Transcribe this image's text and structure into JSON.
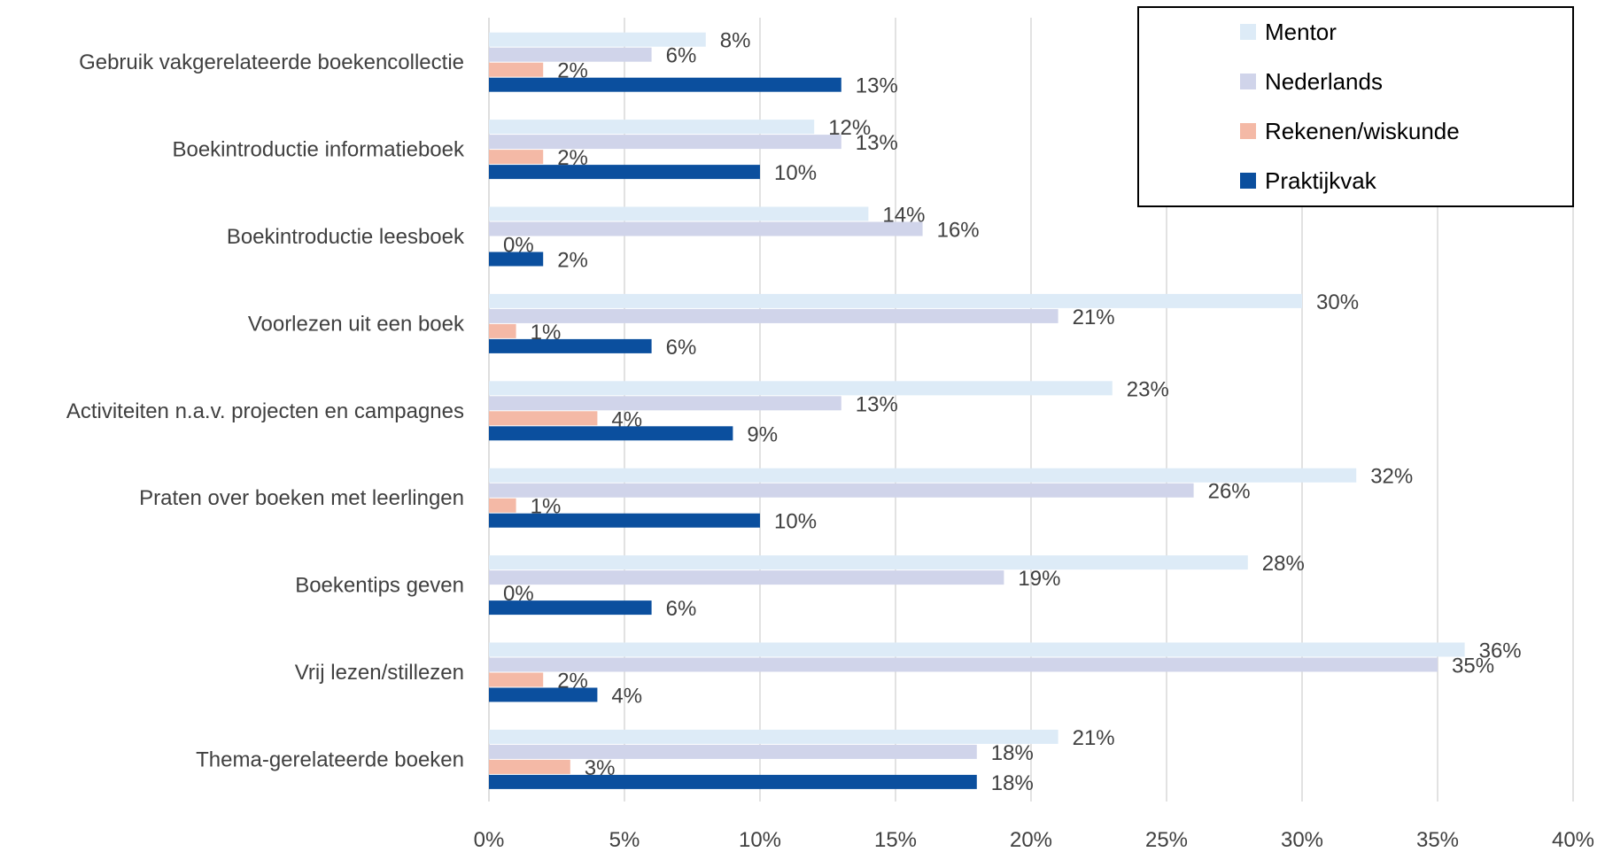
{
  "chart_data": {
    "type": "bar",
    "orientation": "horizontal",
    "categories": [
      "Gebruik vakgerelateerde boekencollectie",
      "Boekintroductie informatieboek",
      "Boekintroductie leesboek",
      "Voorlezen uit een boek",
      "Activiteiten n.a.v. projecten en campagnes",
      "Praten over boeken met leerlingen",
      "Boekentips geven",
      "Vrij lezen/stillezen",
      "Thema-gerelateerde boeken"
    ],
    "series": [
      {
        "name": "Mentor",
        "color": "#DDEBF7",
        "values": [
          8,
          12,
          14,
          30,
          23,
          32,
          28,
          36,
          21
        ]
      },
      {
        "name": "Nederlands",
        "color": "#D0D4EA",
        "values": [
          6,
          13,
          16,
          21,
          13,
          26,
          19,
          35,
          18
        ]
      },
      {
        "name": "Rekenen/wiskunde",
        "color": "#F4B9A6",
        "values": [
          2,
          2,
          0,
          1,
          4,
          1,
          0,
          2,
          3
        ]
      },
      {
        "name": "Praktijkvak",
        "color": "#0B4F9E",
        "values": [
          13,
          10,
          2,
          6,
          9,
          10,
          6,
          4,
          18
        ]
      }
    ],
    "xlim": [
      0,
      40
    ],
    "xticks": [
      0,
      5,
      10,
      15,
      20,
      25,
      30,
      35,
      40
    ],
    "tick_suffix": "%",
    "value_suffix": "%",
    "grid": "vertical",
    "legend_position": "top-right",
    "title": "",
    "xlabel": "",
    "ylabel": ""
  }
}
